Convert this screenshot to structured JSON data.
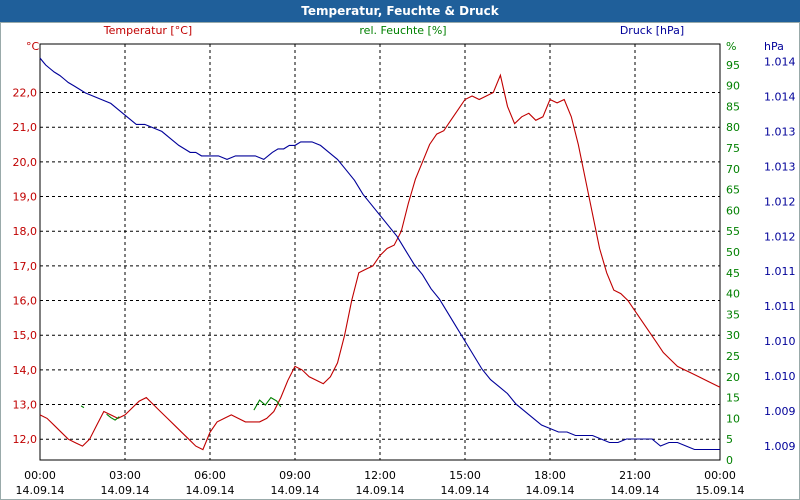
{
  "title": "Temperatur, Feuchte & Druck",
  "colors": {
    "temp": "#c00000",
    "hum": "#008000",
    "press": "#000099",
    "title_bg": "#1f5f9a",
    "grid": "#000000"
  },
  "chart_data": {
    "type": "line",
    "title": "Temperatur, Feuchte & Druck",
    "x_labels": [
      {
        "time": "00:00",
        "date": "14.09.14"
      },
      {
        "time": "03:00",
        "date": "14.09.14"
      },
      {
        "time": "06:00",
        "date": "14.09.14"
      },
      {
        "time": "09:00",
        "date": "14.09.14"
      },
      {
        "time": "12:00",
        "date": "14.09.14"
      },
      {
        "time": "15:00",
        "date": "14.09.14"
      },
      {
        "time": "18:00",
        "date": "14.09.14"
      },
      {
        "time": "21:00",
        "date": "14.09.14"
      },
      {
        "time": "00:00",
        "date": "15.09.14"
      }
    ],
    "x_range_hours": [
      0,
      24
    ],
    "axes": {
      "temp": {
        "label": "Temperatur [°C]",
        "unit": "°C",
        "ylim": [
          11.4,
          23.4
        ],
        "ticks": [
          "12,0",
          "13,0",
          "14,0",
          "15,0",
          "16,0",
          "17,0",
          "18,0",
          "19,0",
          "20,0",
          "21,0",
          "22,0"
        ],
        "tick_values": [
          12,
          13,
          14,
          15,
          16,
          17,
          18,
          19,
          20,
          21,
          22
        ]
      },
      "hum": {
        "label": "rel. Feuchte [%]",
        "unit": "%",
        "ylim": [
          0,
          100
        ],
        "ticks": [
          "0",
          "5",
          "10",
          "15",
          "20",
          "25",
          "30",
          "35",
          "40",
          "45",
          "50",
          "55",
          "60",
          "65",
          "70",
          "75",
          "80",
          "85",
          "90",
          "95"
        ],
        "tick_values": [
          0,
          5,
          10,
          15,
          20,
          25,
          30,
          35,
          40,
          45,
          50,
          55,
          60,
          65,
          70,
          75,
          80,
          85,
          90,
          95
        ]
      },
      "press": {
        "label": "Druck [hPa]",
        "unit": "hPa",
        "ylim": [
          1008.8,
          1014.75
        ],
        "ticks": [
          "1.009",
          "1.009",
          "1.010",
          "1.010",
          "1.011",
          "1.011",
          "1.012",
          "1.012",
          "1.013",
          "1.013",
          "1.014",
          "1.014"
        ],
        "tick_values": [
          1009.0,
          1009.5,
          1010.0,
          1010.5,
          1011.0,
          1011.5,
          1012.0,
          1012.5,
          1013.0,
          1013.5,
          1014.0,
          1014.5
        ]
      }
    },
    "series": [
      {
        "name": "Temperatur",
        "axis": "temp",
        "color": "#c00000",
        "x": [
          0,
          0.25,
          0.5,
          0.75,
          1,
          1.25,
          1.5,
          1.75,
          2,
          2.25,
          2.5,
          2.75,
          3,
          3.25,
          3.5,
          3.75,
          4,
          4.25,
          4.5,
          4.75,
          5,
          5.25,
          5.5,
          5.75,
          6,
          6.25,
          6.5,
          6.75,
          7,
          7.25,
          7.5,
          7.75,
          8,
          8.25,
          8.5,
          8.75,
          9,
          9.25,
          9.5,
          9.75,
          10,
          10.25,
          10.5,
          10.75,
          11,
          11.25,
          11.5,
          11.75,
          12,
          12.25,
          12.5,
          12.75,
          13,
          13.25,
          13.5,
          13.75,
          14,
          14.25,
          14.5,
          14.75,
          15,
          15.25,
          15.5,
          15.75,
          16,
          16.25,
          16.5,
          16.75,
          17,
          17.25,
          17.5,
          17.75,
          18,
          18.25,
          18.5,
          18.75,
          19,
          19.25,
          19.5,
          19.75,
          20,
          20.25,
          20.5,
          20.75,
          21,
          21.25,
          21.5,
          21.75,
          22,
          22.25,
          22.5,
          22.75,
          23,
          23.25,
          23.5,
          23.75,
          24
        ],
        "values": [
          12.7,
          12.6,
          12.4,
          12.2,
          12.0,
          11.9,
          11.8,
          12.0,
          12.4,
          12.8,
          12.7,
          12.6,
          12.7,
          12.9,
          13.1,
          13.2,
          13.0,
          12.8,
          12.6,
          12.4,
          12.2,
          12.0,
          11.8,
          11.7,
          12.2,
          12.5,
          12.6,
          12.7,
          12.6,
          12.5,
          12.5,
          12.5,
          12.6,
          12.8,
          13.2,
          13.7,
          14.1,
          14.0,
          13.8,
          13.7,
          13.6,
          13.8,
          14.2,
          15.0,
          16.0,
          16.8,
          16.9,
          17.0,
          17.3,
          17.5,
          17.6,
          18.0,
          18.8,
          19.5,
          20.0,
          20.5,
          20.8,
          20.9,
          21.2,
          21.5,
          21.8,
          21.9,
          21.8,
          21.9,
          22.0,
          22.5,
          21.6,
          21.1,
          21.3,
          21.4,
          21.2,
          21.3,
          21.8,
          21.7,
          21.8,
          21.3,
          20.5,
          19.5,
          18.5,
          17.5,
          16.8,
          16.3,
          16.2,
          16.0,
          15.7,
          15.4,
          15.1,
          14.8,
          14.5,
          14.3,
          14.1,
          14.0,
          13.9,
          13.8,
          13.7,
          13.6,
          13.5
        ]
      },
      {
        "name": "rel. Feuchte",
        "axis": "hum",
        "color": "#008000",
        "segments": [
          {
            "x": [
              1.45,
              1.55
            ],
            "values": [
              13.0,
              12.6
            ]
          },
          {
            "x": [
              2.35,
              2.5,
              2.65,
              2.8
            ],
            "values": [
              11.0,
              10.2,
              9.6,
              10.4
            ]
          },
          {
            "x": [
              7.55,
              7.75,
              7.95,
              8.15,
              8.35,
              8.5
            ],
            "values": [
              12.0,
              14.4,
              13.2,
              15.0,
              14.2,
              12.8
            ]
          }
        ]
      },
      {
        "name": "Druck",
        "axis": "press",
        "color": "#000099",
        "x": [
          0,
          0.1,
          0.2,
          0.35,
          0.5,
          0.7,
          0.85,
          1.0,
          1.2,
          1.4,
          1.6,
          1.9,
          2.2,
          2.5,
          2.8,
          3.1,
          3.4,
          3.7,
          4.0,
          4.3,
          4.6,
          4.9,
          5.1,
          5.3,
          5.5,
          5.7,
          6.0,
          6.3,
          6.6,
          6.9,
          7.1,
          7.3,
          7.6,
          7.9,
          8.2,
          8.4,
          8.6,
          8.8,
          9.0,
          9.2,
          9.4,
          9.6,
          9.9,
          10.2,
          10.5,
          10.8,
          11.1,
          11.4,
          11.7,
          12.0,
          12.3,
          12.6,
          12.9,
          13.2,
          13.5,
          13.8,
          14.1,
          14.4,
          14.7,
          15.0,
          15.3,
          15.6,
          15.9,
          16.2,
          16.5,
          16.8,
          17.1,
          17.4,
          17.7,
          18.0,
          18.3,
          18.6,
          18.9,
          19.2,
          19.5,
          19.8,
          20.1,
          20.4,
          20.7,
          21.0,
          21.3,
          21.6,
          21.9,
          22.2,
          22.5,
          22.8,
          23.1,
          23.4,
          23.7,
          24.0
        ],
        "values": [
          1014.55,
          1014.5,
          1014.45,
          1014.4,
          1014.35,
          1014.3,
          1014.25,
          1014.2,
          1014.15,
          1014.1,
          1014.05,
          1014.0,
          1013.95,
          1013.9,
          1013.8,
          1013.7,
          1013.6,
          1013.6,
          1013.55,
          1013.5,
          1013.4,
          1013.3,
          1013.25,
          1013.2,
          1013.2,
          1013.15,
          1013.15,
          1013.15,
          1013.1,
          1013.15,
          1013.15,
          1013.15,
          1013.15,
          1013.1,
          1013.2,
          1013.25,
          1013.25,
          1013.3,
          1013.3,
          1013.35,
          1013.35,
          1013.35,
          1013.3,
          1013.2,
          1013.1,
          1012.95,
          1012.8,
          1012.6,
          1012.45,
          1012.3,
          1012.15,
          1012.0,
          1011.8,
          1011.6,
          1011.45,
          1011.25,
          1011.1,
          1010.9,
          1010.7,
          1010.5,
          1010.3,
          1010.1,
          1009.95,
          1009.85,
          1009.75,
          1009.6,
          1009.5,
          1009.4,
          1009.3,
          1009.25,
          1009.2,
          1009.2,
          1009.15,
          1009.15,
          1009.15,
          1009.1,
          1009.05,
          1009.05,
          1009.1,
          1009.1,
          1009.1,
          1009.1,
          1009.0,
          1009.05,
          1009.05,
          1009.0,
          1008.95,
          1008.95,
          1008.95,
          1008.95
        ]
      }
    ],
    "grid": true
  }
}
